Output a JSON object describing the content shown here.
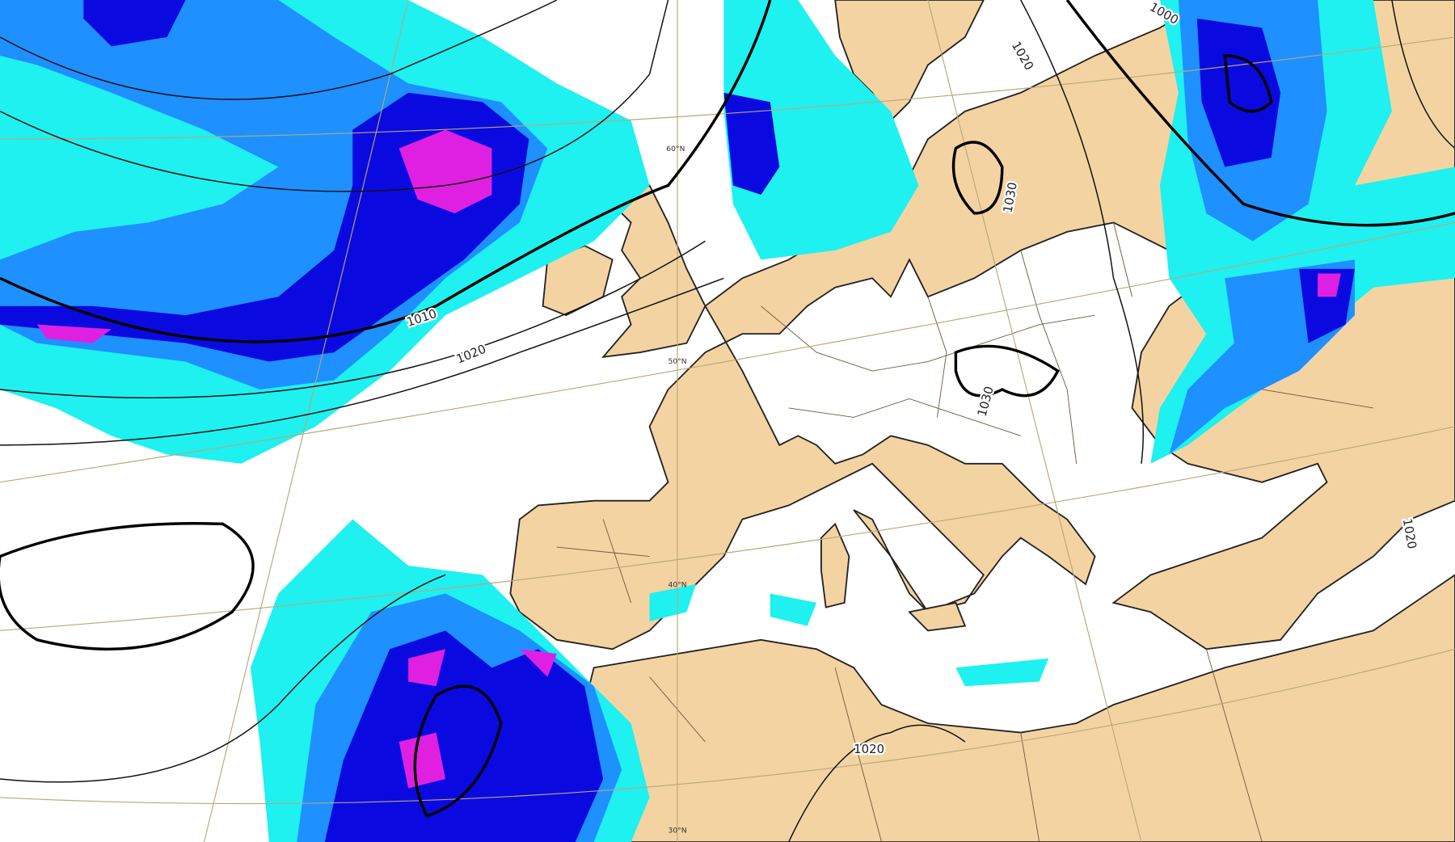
{
  "map": {
    "colors": {
      "land": "#f4d3a2",
      "sea": "#ffffff",
      "precip_light": "#1ff0f0",
      "precip_moderate": "#1e90ff",
      "precip_heavy": "#0a0ae0",
      "precip_extreme": "#e020e0",
      "isobar": "#111111"
    },
    "latitude_labels": [
      "60°N",
      "50°N",
      "40°N",
      "30°N"
    ],
    "isobar_labels": [
      "1010",
      "1020",
      "1020",
      "1030",
      "1030",
      "1020",
      "1020",
      "1000"
    ]
  }
}
